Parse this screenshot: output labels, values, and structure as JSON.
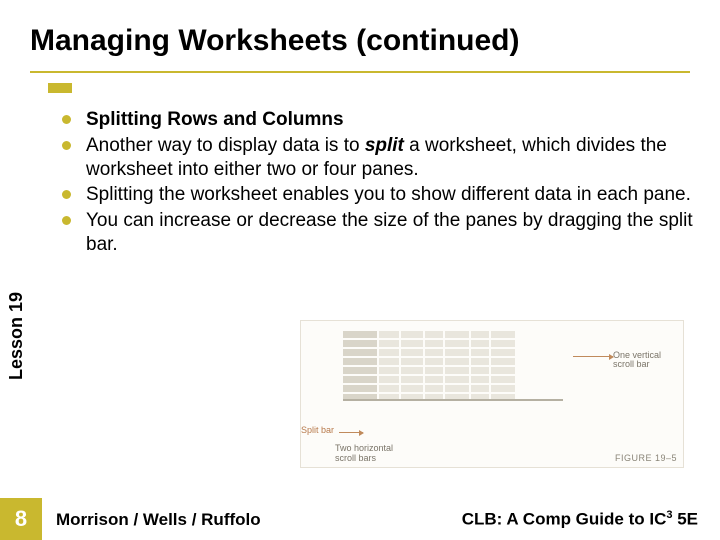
{
  "title": "Managing Worksheets (continued)",
  "accent_color": "#c9b82f",
  "rule_color": "#c9b82f",
  "bullet_color": "#c9b82f",
  "sidebar": {
    "label": "Lesson 19",
    "badge_bg": "#c9b82f"
  },
  "bullets": [
    {
      "bold_lead": "Splitting Rows and Columns",
      "rest": ""
    },
    {
      "pre": "Another way to display data is to ",
      "em": "split",
      "post": " a worksheet, which divides the worksheet into either two or four panes."
    },
    {
      "text": "Splitting the worksheet enables you to show different data in each pane."
    },
    {
      "text": "You can increase or decrease the size of the panes by dragging the split bar."
    }
  ],
  "figure": {
    "callout_right_l1": "One vertical",
    "callout_right_l2": "scroll bar",
    "callout_splitbar": "Split bar",
    "callout_two_l1": "Two horizontal",
    "callout_two_l2": "scroll bars",
    "fig_label": "FIGURE 19–5"
  },
  "footer": {
    "page": "8",
    "left": "Morrison / Wells / Ruffolo",
    "right_pre": "CLB: A Comp Guide to IC",
    "right_sup": "3",
    "right_post": " 5E"
  }
}
